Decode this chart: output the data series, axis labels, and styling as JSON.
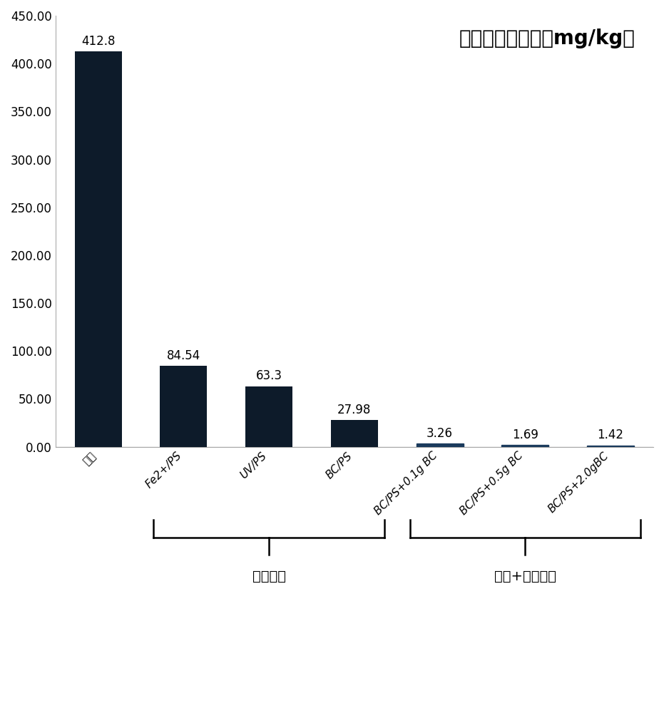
{
  "categories": [
    "原土",
    "Fe2+/PS",
    "UV/PS",
    "BC/PS",
    "BC/PS+0.1g BC",
    "BC/PS+0.5g BC",
    "BC/PS+2.0gBC"
  ],
  "values": [
    412.8,
    84.54,
    63.3,
    27.98,
    3.26,
    1.69,
    1.42
  ],
  "bar_color": "#0d1b2a",
  "bar_color_small": "#1a3a5c",
  "title": "总多环芳烃含量（mg/kg）",
  "ylim": [
    0,
    450
  ],
  "yticks": [
    0,
    50,
    100,
    150,
    200,
    250,
    300,
    350,
    400,
    450
  ],
  "ytick_labels": [
    "0.00",
    "50.00",
    "100.00",
    "150.00",
    "200.00",
    "250.00",
    "300.00",
    "350.00",
    "400.00",
    "450.00"
  ],
  "group1_label": "淋洗处理",
  "group2_label": "淋洗+堆放处理",
  "background_color": "#ffffff"
}
